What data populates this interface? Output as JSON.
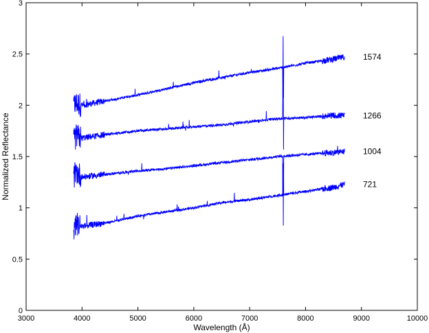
{
  "chart_data": {
    "type": "line",
    "title": "",
    "xlabel": "Wavelength (Å)",
    "ylabel": "Normalized Reflectance",
    "xlim": [
      3000,
      10000
    ],
    "ylim": [
      0,
      3
    ],
    "xticks": [
      3000,
      4000,
      5000,
      6000,
      7000,
      8000,
      9000,
      10000
    ],
    "yticks": [
      0,
      0.5,
      1,
      1.5,
      2,
      2.5,
      3
    ],
    "grid": false,
    "legend": "none",
    "line_color": "#0000ff",
    "series": [
      {
        "name": "1574",
        "x": [
          3850,
          3900,
          4000,
          4500,
          5000,
          5500,
          6000,
          6500,
          7000,
          7500,
          8000,
          8500,
          8700
        ],
        "values": [
          2.0,
          2.02,
          2.0,
          2.05,
          2.1,
          2.16,
          2.22,
          2.27,
          2.32,
          2.36,
          2.41,
          2.45,
          2.47
        ]
      },
      {
        "name": "1266",
        "x": [
          3850,
          3900,
          4000,
          4500,
          5000,
          5500,
          6000,
          6500,
          7000,
          7500,
          8000,
          8500,
          8700
        ],
        "values": [
          1.65,
          1.7,
          1.68,
          1.72,
          1.75,
          1.77,
          1.79,
          1.81,
          1.84,
          1.87,
          1.88,
          1.9,
          1.9
        ]
      },
      {
        "name": "1004",
        "x": [
          3850,
          3900,
          4000,
          4500,
          5000,
          5500,
          6000,
          6500,
          7000,
          7500,
          8000,
          8500,
          8700
        ],
        "values": [
          1.3,
          1.35,
          1.3,
          1.33,
          1.36,
          1.38,
          1.41,
          1.44,
          1.47,
          1.5,
          1.52,
          1.54,
          1.55
        ]
      },
      {
        "name": "721",
        "x": [
          3850,
          3900,
          4000,
          4500,
          5000,
          5500,
          6000,
          6500,
          7000,
          7500,
          8000,
          8500,
          8700
        ],
        "values": [
          0.8,
          0.85,
          0.82,
          0.86,
          0.92,
          0.96,
          1.0,
          1.05,
          1.08,
          1.12,
          1.16,
          1.2,
          1.23
        ]
      }
    ]
  }
}
